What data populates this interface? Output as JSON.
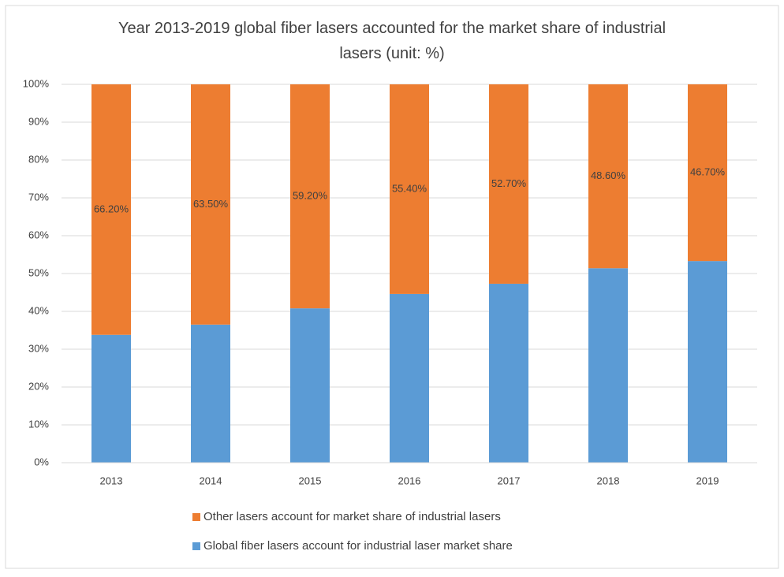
{
  "chart_data": {
    "type": "stacked_bar",
    "title": "Year 2013-2019 global fiber lasers accounted for the market share of industrial lasers (unit: %)",
    "categories": [
      "2013",
      "2014",
      "2015",
      "2016",
      "2017",
      "2018",
      "2019"
    ],
    "series": [
      {
        "name": "Global fiber lasers account for industrial laser market share",
        "color": "#5b9bd5",
        "values": [
          33.8,
          36.5,
          40.8,
          44.6,
          47.3,
          51.4,
          53.3
        ]
      },
      {
        "name": "Other lasers account for market share of industrial lasers",
        "color": "#ed7d31",
        "values": [
          66.2,
          63.5,
          59.2,
          55.4,
          52.7,
          48.6,
          46.7
        ],
        "value_labels": [
          "66.20%",
          "63.50%",
          "59.20%",
          "55.40%",
          "52.70%",
          "48.60%",
          "46.70%"
        ]
      }
    ],
    "ylim": [
      0,
      100
    ],
    "yticks": [
      {
        "value": 0,
        "label": "0%"
      },
      {
        "value": 10,
        "label": "10%"
      },
      {
        "value": 20,
        "label": "20%"
      },
      {
        "value": 30,
        "label": "30%"
      },
      {
        "value": 40,
        "label": "40%"
      },
      {
        "value": 50,
        "label": "50%"
      },
      {
        "value": 60,
        "label": "60%"
      },
      {
        "value": 70,
        "label": "70%"
      },
      {
        "value": 80,
        "label": "80%"
      },
      {
        "value": 90,
        "label": "90%"
      },
      {
        "value": 100,
        "label": "100%"
      }
    ],
    "grid": true,
    "legend": "bottom"
  }
}
